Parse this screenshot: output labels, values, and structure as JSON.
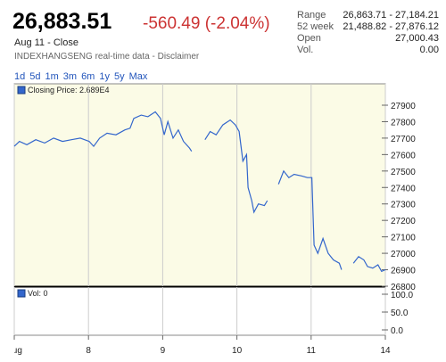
{
  "header": {
    "price": "26,883.51",
    "change": "-560.49 (-2.04%)",
    "date": "Aug 11 - Close",
    "source": "INDEXHANGSENG real-time data - Disclaimer"
  },
  "stats": [
    {
      "label": "Range",
      "value": "26,863.71 - 27,184.21"
    },
    {
      "label": "52 week",
      "value": "21,488.82 - 27,876.12"
    },
    {
      "label": "Open",
      "value": "27,000.43"
    },
    {
      "label": "Vol.",
      "value": "0.00"
    }
  ],
  "ranges": [
    "1d",
    "5d",
    "1m",
    "3m",
    "6m",
    "1y",
    "5y",
    "Max"
  ],
  "chart_data": {
    "type": "line",
    "legend": "Closing Price: 2.689E4",
    "color": "#3366cc",
    "grid": true,
    "x": [
      0,
      0.07,
      0.17,
      0.29,
      0.41,
      0.53,
      0.65,
      0.77,
      0.89,
      1.01,
      1.07,
      1.15,
      1.25,
      1.37,
      1.49,
      1.56,
      1.61,
      1.71,
      1.8,
      1.9,
      1.97,
      2.02,
      2.07,
      2.14,
      2.21,
      2.28,
      2.36,
      2.39,
      2.5,
      2.57,
      2.64,
      2.72,
      2.81,
      2.91,
      2.98,
      3.03,
      3.08,
      3.13,
      3.15,
      3.2,
      3.23,
      3.29,
      3.37,
      3.41,
      3.47,
      3.56,
      3.63,
      3.7,
      3.77,
      3.87,
      3.95,
      4.01,
      4.04,
      4.09,
      4.16,
      4.23,
      4.3,
      4.38,
      4.41,
      4.49,
      4.57,
      4.64,
      4.71,
      4.76,
      4.83,
      4.9,
      4.95,
      5
    ],
    "values": [
      27650,
      27680,
      27660,
      27690,
      27670,
      27700,
      27680,
      27690,
      27700,
      27680,
      27650,
      27700,
      27730,
      27720,
      27750,
      27760,
      27820,
      27840,
      27830,
      27860,
      27820,
      27720,
      27800,
      27700,
      27750,
      27680,
      27640,
      27620,
      null,
      27690,
      27740,
      27720,
      27780,
      27810,
      27780,
      27740,
      27560,
      27600,
      27400,
      27320,
      27250,
      27300,
      27290,
      27320,
      null,
      27420,
      27500,
      27460,
      27480,
      27470,
      27460,
      27460,
      27050,
      27000,
      27090,
      27000,
      26960,
      26940,
      26900,
      null,
      26940,
      26980,
      26960,
      26920,
      26910,
      26930,
      26890,
      26900
    ],
    "xlim": [
      0,
      5
    ],
    "xticks": [
      {
        "value": 0,
        "label": "Aug"
      },
      {
        "value": 1,
        "label": "8"
      },
      {
        "value": 2,
        "label": "9"
      },
      {
        "value": 3,
        "label": "10"
      },
      {
        "value": 4,
        "label": "11"
      },
      {
        "value": 5,
        "label": "14"
      }
    ],
    "ylim": [
      26800,
      28030
    ],
    "yticks": [
      26800,
      26900,
      27000,
      27100,
      27200,
      27300,
      27400,
      27500,
      27600,
      27700,
      27800,
      27900
    ]
  },
  "volume_panel": {
    "legend": "Vol: 0",
    "ylim": [
      -15,
      120
    ],
    "yticks": [
      {
        "value": 0,
        "label": "0.0"
      },
      {
        "value": 50,
        "label": "50.0"
      },
      {
        "value": 100,
        "label": "100.0"
      }
    ]
  }
}
